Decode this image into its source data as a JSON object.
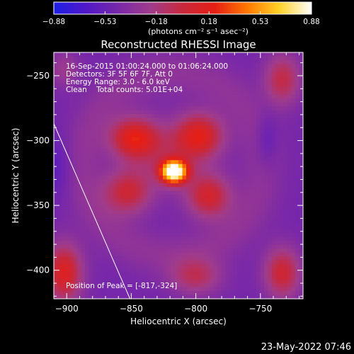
{
  "chart_data": {
    "type": "heatmap",
    "title": "Reconstructed RHESSI Image",
    "xlabel": "Heliocentric X (arcsec)",
    "ylabel": "Heliocentric Y (arcsec)",
    "xlim": [
      -910,
      -717
    ],
    "ylim": [
      -422,
      -232
    ],
    "x_ticks": [
      -900,
      -850,
      -800,
      -750
    ],
    "y_ticks": [
      -250,
      -300,
      -350,
      -400
    ],
    "x_tick_labels": [
      "−900",
      "−850",
      "−800",
      "−750"
    ],
    "y_tick_labels": [
      "−250",
      "−300",
      "−350",
      "−400"
    ],
    "colorbar": {
      "min": -0.88,
      "max": 0.88,
      "ticks": [
        -0.88,
        -0.53,
        -0.18,
        0.18,
        0.53,
        0.88
      ],
      "tick_labels": [
        "−0.88",
        "−0.53",
        "−0.18",
        "0.18",
        "0.53",
        "0.88"
      ],
      "units_label": "(photons cm⁻² s⁻¹ asec⁻²)",
      "stops": [
        "#1e1ee6",
        "#5018c8",
        "#7828a8",
        "#a03c8c",
        "#c8283c",
        "#e61e14",
        "#ff7800",
        "#ffd228",
        "#ffffff"
      ]
    },
    "annotations": [
      "16-Sep-2015 01:00:24.000 to 01:06:24.000",
      "Detectors: 3F 5F 6F 7F, Att 0",
      "Energy Range: 3.0 - 6.0 keV",
      "Clean    Total counts: 5.01E+04"
    ],
    "peak_label": "Position of Peak = [-817,-324]",
    "peak": [
      -817,
      -324
    ],
    "limb_line": [
      [
        -910,
        -287
      ],
      [
        -851,
        -422
      ]
    ],
    "sources": [
      {
        "x": -817,
        "y": -324,
        "amp": 1.0,
        "sx": 7,
        "sy": 6
      },
      {
        "x": -848,
        "y": -298,
        "amp": 0.42,
        "sx": 13,
        "sy": 11
      },
      {
        "x": -797,
        "y": -296,
        "amp": 0.4,
        "sx": 13,
        "sy": 12
      },
      {
        "x": -853,
        "y": -340,
        "amp": 0.32,
        "sx": 13,
        "sy": 12
      },
      {
        "x": -790,
        "y": -343,
        "amp": 0.36,
        "sx": 12,
        "sy": 12
      },
      {
        "x": -822,
        "y": -312,
        "amp": 0.18,
        "sx": 22,
        "sy": 18
      },
      {
        "x": -902,
        "y": -402,
        "amp": 0.42,
        "sx": 10,
        "sy": 16
      },
      {
        "x": -733,
        "y": -253,
        "amp": 0.3,
        "sx": 10,
        "sy": 14
      },
      {
        "x": -733,
        "y": -402,
        "amp": 0.35,
        "sx": 10,
        "sy": 14
      },
      {
        "x": -800,
        "y": -405,
        "amp": 0.25,
        "sx": 14,
        "sy": 10
      },
      {
        "x": -902,
        "y": -245,
        "amp": 0.15,
        "sx": 8,
        "sy": 10
      },
      {
        "x": -745,
        "y": -300,
        "amp": -0.12,
        "sx": 6,
        "sy": 15
      },
      {
        "x": -908,
        "y": -320,
        "amp": -0.1,
        "sx": 8,
        "sy": 16
      }
    ],
    "background_level": -0.32,
    "ring": {
      "cx": -818,
      "cy": -318,
      "radius": 70,
      "width": 12,
      "amp": 0.1
    },
    "grid": false
  },
  "footer": {
    "timestamp": "23-May-2022 07:46"
  }
}
